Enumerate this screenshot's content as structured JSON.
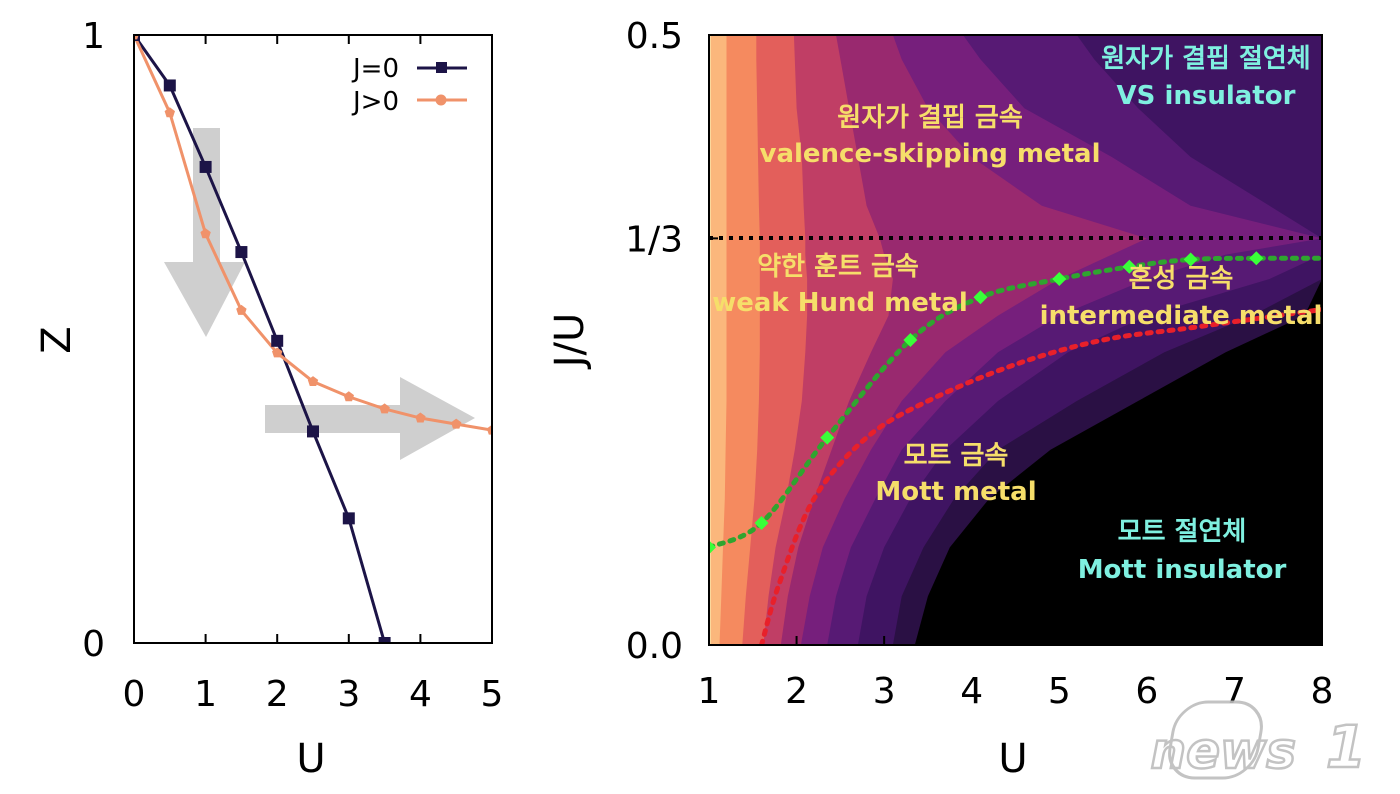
{
  "colors": {
    "j0": "#1c1447",
    "jpos": "#f0926a",
    "arrow": "#cfcfcf",
    "label_yellow": "#f6de6a",
    "label_cyan": "#7ff0e0",
    "green_line": "#2fa52f",
    "green_marker": "#39ff39",
    "red_line": "#e8202a",
    "black_line": "#000000",
    "watermark": "#bdbdbd"
  },
  "chart_data": [
    {
      "type": "line",
      "title": "",
      "xlabel": "U",
      "ylabel": "Z",
      "xlim": [
        0,
        5
      ],
      "ylim": [
        0,
        1
      ],
      "xticks": [
        0,
        1,
        2,
        3,
        4,
        5
      ],
      "xtick_labels": [
        "0",
        "1",
        "2",
        "3",
        "4",
        "5"
      ],
      "yticks": [
        0,
        1
      ],
      "ytick_labels": [
        "0",
        "1"
      ],
      "legend_position": "top-right",
      "series": [
        {
          "name": "J=0",
          "marker": "square",
          "x": [
            0,
            0.5,
            1,
            1.5,
            2,
            2.5,
            3,
            3.5
          ],
          "y": [
            1.0,
            0.917,
            0.783,
            0.643,
            0.497,
            0.348,
            0.205,
            0.0
          ]
        },
        {
          "name": "J>0",
          "marker": "pentagon",
          "x": [
            0,
            0.5,
            1,
            1.5,
            2,
            2.5,
            3,
            3.5,
            4,
            4.5,
            5
          ],
          "y": [
            1.0,
            0.872,
            0.673,
            0.547,
            0.477,
            0.43,
            0.405,
            0.385,
            0.37,
            0.36,
            0.35
          ]
        }
      ],
      "annotations": [
        {
          "type": "arrow",
          "direction": "down",
          "meaning": "Z decreases"
        },
        {
          "type": "arrow",
          "direction": "right",
          "meaning": "Z saturates"
        }
      ]
    },
    {
      "type": "heatmap",
      "title": "",
      "xlabel": "U",
      "ylabel": "J/U",
      "xlim": [
        1,
        8
      ],
      "ylim": [
        0,
        0.5
      ],
      "xticks": [
        1,
        2,
        3,
        4,
        5,
        6,
        7,
        8
      ],
      "xtick_labels": [
        "1",
        "2",
        "3",
        "4",
        "5",
        "6",
        "7",
        "8"
      ],
      "yticks": [
        0,
        0.3333,
        0.5
      ],
      "ytick_labels": [
        "0.0",
        "1/3",
        "0.5"
      ],
      "colormap": "magma (bright at small U, black at large U)",
      "reference_line": {
        "y": 0.3333,
        "style": "dotted",
        "color": "black"
      },
      "green_boundary": {
        "x": [
          1.0,
          1.6,
          2.35,
          3.3,
          4.1,
          5.0,
          5.8,
          6.5,
          7.25
        ],
        "y": [
          0.08,
          0.1,
          0.17,
          0.25,
          0.285,
          0.3,
          0.31,
          0.316,
          0.317
        ]
      },
      "red_boundary": {
        "x": [
          1.6,
          1.8,
          2.2,
          2.8,
          3.5,
          4.5,
          5.5,
          6.5,
          7.5,
          8.0
        ],
        "y": [
          0.0,
          0.05,
          0.12,
          0.17,
          0.2,
          0.23,
          0.25,
          0.26,
          0.27,
          0.275
        ]
      },
      "regions": [
        {
          "ko": "원자가 결핍 절연체",
          "en": "VS insulator",
          "color": "cyan"
        },
        {
          "ko": "원자가 결핍 금속",
          "en": "valence-skipping metal",
          "color": "yellow"
        },
        {
          "ko": "약한 훈트 금속",
          "en": "weak Hund metal",
          "color": "yellow"
        },
        {
          "ko": "혼성 금속",
          "en": "intermediate metal",
          "color": "yellow"
        },
        {
          "ko": "모트 금속",
          "en": "Mott metal",
          "color": "yellow"
        },
        {
          "ko": "모트 절연체",
          "en": "Mott insulator",
          "color": "cyan"
        }
      ]
    }
  ],
  "watermark": {
    "text": "news",
    "suffix": "1"
  }
}
